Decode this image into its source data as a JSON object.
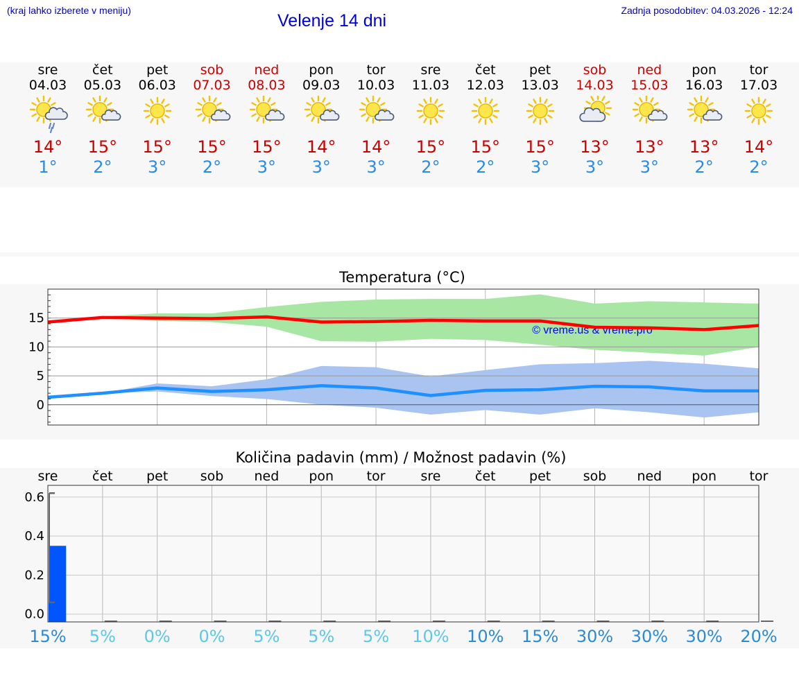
{
  "header": {
    "menu_note": "(kraj lahko izberete v meniju)",
    "title": "Velenje 14 dni",
    "updated": "Zadnja posodobitev: 04.03.2026 - 12:24"
  },
  "days": [
    {
      "name": "sre",
      "date": "04.03",
      "weekend": false,
      "icon": "sun-cloud-rain-icon",
      "tmax": "14°",
      "tmin": "1°"
    },
    {
      "name": "čet",
      "date": "05.03",
      "weekend": false,
      "icon": "sun-cloud-icon",
      "tmax": "15°",
      "tmin": "2°"
    },
    {
      "name": "pet",
      "date": "06.03",
      "weekend": false,
      "icon": "sun-icon",
      "tmax": "15°",
      "tmin": "3°"
    },
    {
      "name": "sob",
      "date": "07.03",
      "weekend": true,
      "icon": "sun-cloud-icon",
      "tmax": "15°",
      "tmin": "2°"
    },
    {
      "name": "ned",
      "date": "08.03",
      "weekend": true,
      "icon": "sun-cloud-icon",
      "tmax": "15°",
      "tmin": "3°"
    },
    {
      "name": "pon",
      "date": "09.03",
      "weekend": false,
      "icon": "sun-cloud-icon",
      "tmax": "14°",
      "tmin": "3°"
    },
    {
      "name": "tor",
      "date": "10.03",
      "weekend": false,
      "icon": "sun-cloud-icon",
      "tmax": "14°",
      "tmin": "3°"
    },
    {
      "name": "sre",
      "date": "11.03",
      "weekend": false,
      "icon": "sun-icon",
      "tmax": "15°",
      "tmin": "2°"
    },
    {
      "name": "čet",
      "date": "12.03",
      "weekend": false,
      "icon": "sun-icon",
      "tmax": "15°",
      "tmin": "2°"
    },
    {
      "name": "pet",
      "date": "13.03",
      "weekend": false,
      "icon": "sun-icon",
      "tmax": "15°",
      "tmin": "3°"
    },
    {
      "name": "sob",
      "date": "14.03",
      "weekend": true,
      "icon": "cloud-sun-icon",
      "tmax": "13°",
      "tmin": "3°"
    },
    {
      "name": "ned",
      "date": "15.03",
      "weekend": true,
      "icon": "sun-cloud-icon",
      "tmax": "13°",
      "tmin": "3°"
    },
    {
      "name": "pon",
      "date": "16.03",
      "weekend": false,
      "icon": "sun-cloud-icon",
      "tmax": "13°",
      "tmin": "2°"
    },
    {
      "name": "tor",
      "date": "17.03",
      "weekend": false,
      "icon": "sun-icon",
      "tmax": "14°",
      "tmin": "2°"
    }
  ],
  "colors": {
    "max_line": "#ff0000",
    "max_band": "#a8e6a3",
    "min_line": "#1e90ff",
    "min_band": "#a9c4f0",
    "bar": "#0055ff",
    "pct_light": "#5ac8e6",
    "pct_dark": "#2a8ad6"
  },
  "chart_data": [
    {
      "type": "line",
      "title": "Temperatura (°C)",
      "watermark": "© vreme.us & vreme.pro",
      "ylim": [
        -3.5,
        20
      ],
      "yticks": [
        0,
        5,
        10,
        15
      ],
      "ytick_labels": [
        "0",
        "5",
        "10",
        "15"
      ],
      "x": [
        0,
        1,
        2,
        3,
        4,
        5,
        6,
        7,
        8,
        9,
        10,
        11,
        12,
        13
      ],
      "series": [
        {
          "name": "max",
          "values": [
            14.3,
            15.1,
            15.0,
            14.9,
            15.2,
            14.3,
            14.4,
            14.6,
            14.5,
            14.5,
            13.4,
            13.3,
            13.0,
            13.7
          ],
          "band_low": [
            14.3,
            15.0,
            14.5,
            14.3,
            13.5,
            11.0,
            10.9,
            11.4,
            11.2,
            10.4,
            9.5,
            9.0,
            8.5,
            10.0
          ],
          "band_high": [
            14.3,
            15.3,
            15.8,
            15.8,
            16.9,
            17.8,
            18.2,
            18.3,
            18.3,
            19.1,
            17.5,
            17.9,
            17.7,
            17.5
          ]
        },
        {
          "name": "min",
          "values": [
            1.3,
            2.0,
            2.9,
            2.3,
            2.6,
            3.3,
            2.9,
            1.6,
            2.5,
            2.6,
            3.2,
            3.1,
            2.4,
            2.4
          ],
          "band_low": [
            1.3,
            2.0,
            2.3,
            1.5,
            1.0,
            0.0,
            -0.5,
            -1.7,
            -0.9,
            -1.7,
            -0.6,
            -1.3,
            -2.2,
            -1.3
          ],
          "band_high": [
            1.3,
            2.0,
            3.7,
            3.2,
            4.4,
            6.7,
            6.5,
            4.9,
            6.0,
            7.0,
            7.2,
            7.6,
            7.1,
            6.3
          ]
        }
      ]
    },
    {
      "type": "bar",
      "title": "Količina padavin (mm) / Možnost padavin (%)",
      "categories": [
        "sre",
        "čet",
        "pet",
        "sob",
        "ned",
        "pon",
        "tor",
        "sre",
        "čet",
        "pet",
        "sob",
        "ned",
        "pon",
        "tor"
      ],
      "values": [
        0.35,
        0,
        0,
        0,
        0,
        0,
        0,
        0,
        0,
        0,
        0,
        0,
        0,
        0
      ],
      "ylim": [
        -0.04,
        0.66
      ],
      "yticks": [
        0.0,
        0.2,
        0.4,
        0.6
      ],
      "ytick_labels": [
        "0.0",
        "0.2",
        "0.4",
        "0.6"
      ],
      "range_low": 0.06,
      "range_high": 0.62,
      "probability": [
        "15%",
        "5%",
        "0%",
        "0%",
        "5%",
        "5%",
        "5%",
        "10%",
        "10%",
        "15%",
        "30%",
        "30%",
        "30%",
        "20%"
      ]
    }
  ]
}
